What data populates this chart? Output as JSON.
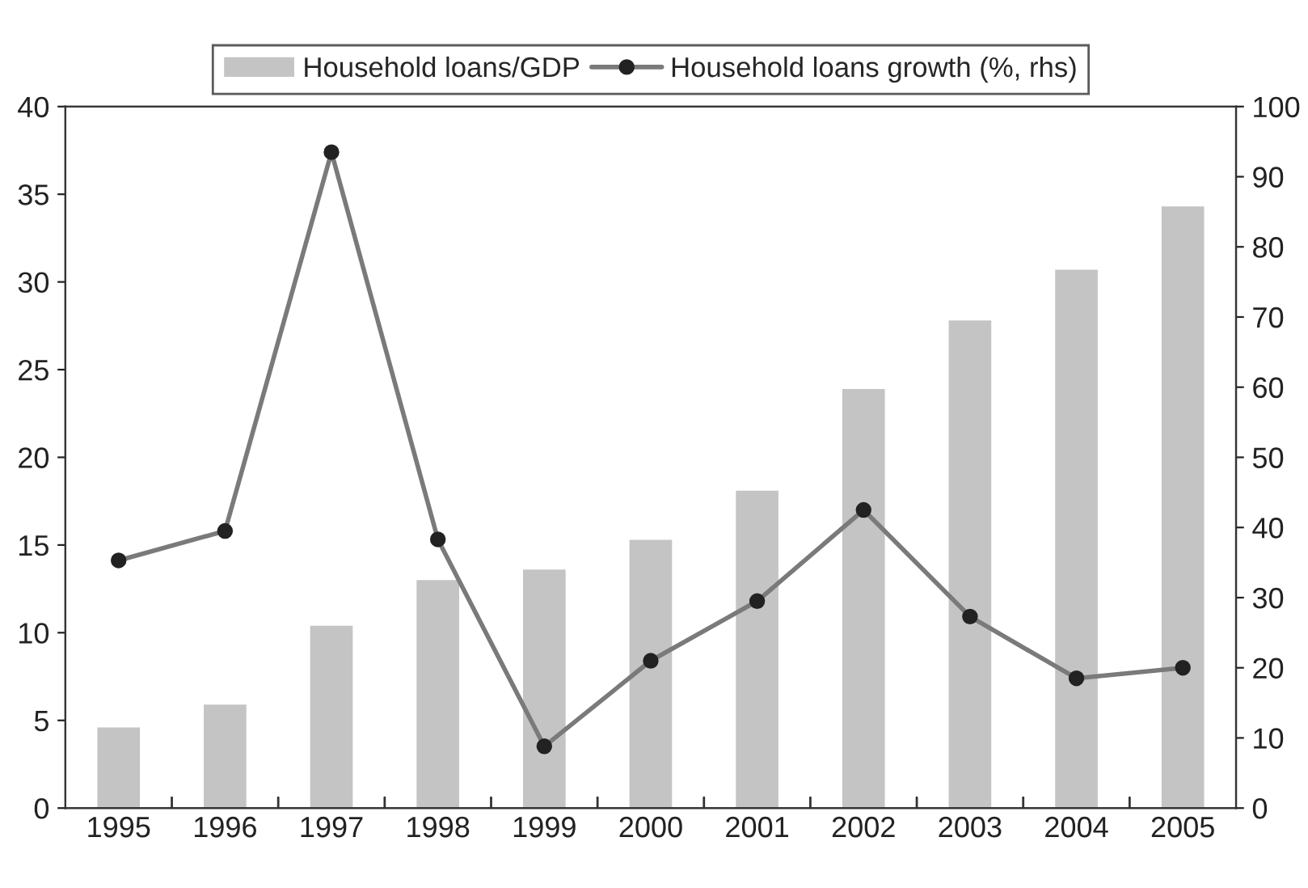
{
  "chart_data": {
    "type": "bar",
    "categories": [
      "1995",
      "1996",
      "1997",
      "1998",
      "1999",
      "2000",
      "2001",
      "2002",
      "2003",
      "2004",
      "2005"
    ],
    "series": [
      {
        "name": "Household loans/GDP",
        "color": "#c3c4c3",
        "values": [
          4.6,
          5.9,
          10.4,
          13.0,
          13.6,
          15.3,
          18.1,
          23.9,
          27.8,
          30.7,
          34.3
        ]
      },
      {
        "name": "Household loans growth (%, rhs)",
        "type": "line",
        "axis": "y2",
        "color": "#7a7a7a",
        "marker": "circle",
        "values": [
          35.3,
          39.5,
          93.5,
          38.3,
          8.8,
          21,
          29.5,
          42.5,
          27.3,
          18.5,
          20
        ]
      }
    ],
    "ylim": [
      0,
      40
    ],
    "yticks": [
      0,
      5,
      10,
      15,
      20,
      25,
      30,
      35,
      40
    ],
    "y2lim": [
      0,
      100
    ],
    "y2ticks": [
      0,
      10,
      20,
      30,
      40,
      50,
      60,
      70,
      80,
      90,
      100
    ],
    "legend": "top",
    "grid": false
  }
}
